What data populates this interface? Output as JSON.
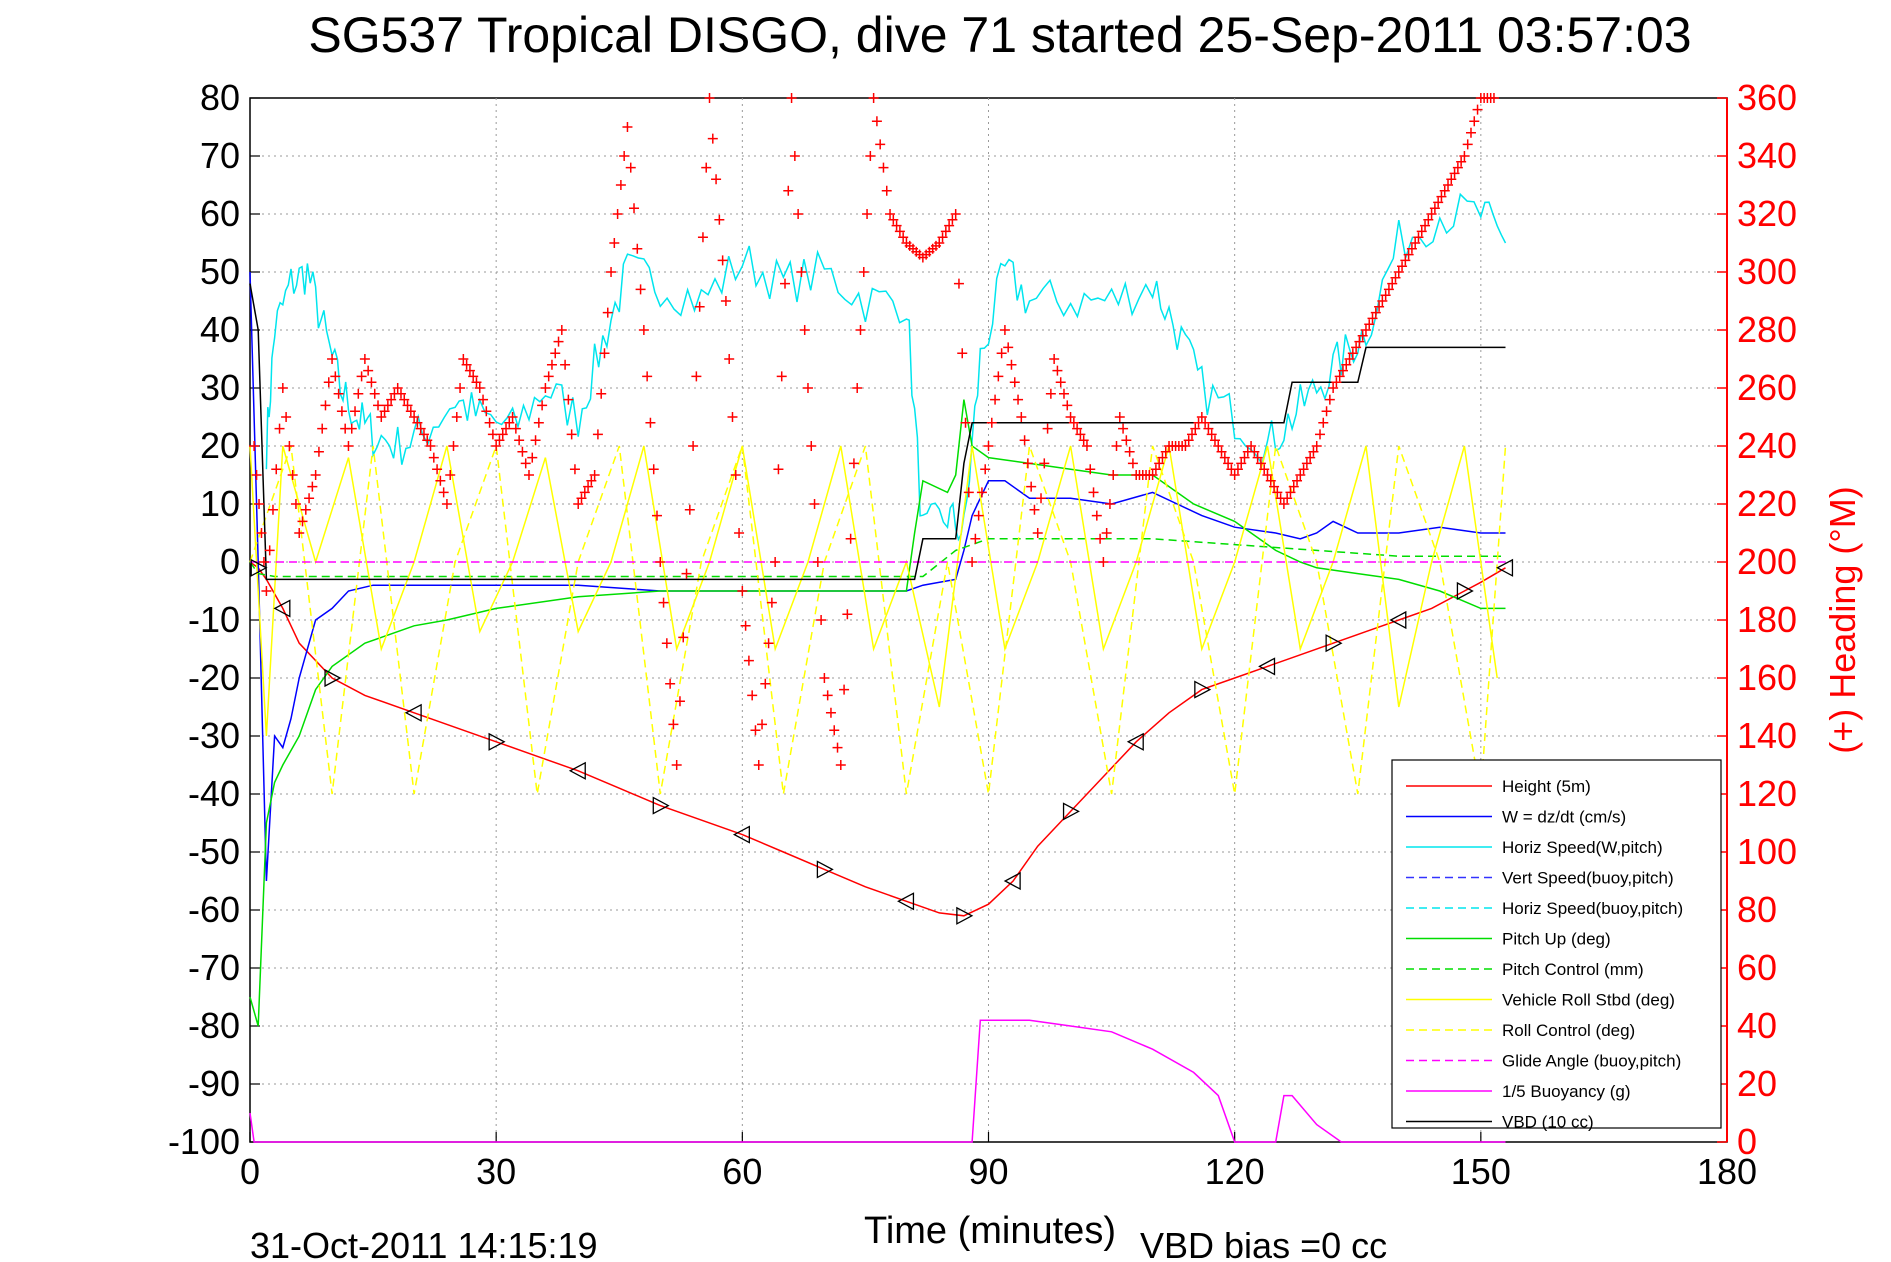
{
  "chart_data": {
    "type": "line",
    "title": "SG537 Tropical DISGO, dive 71 started 25-Sep-2011 03:57:03",
    "xlabel": "Time (minutes)",
    "ylabel": "",
    "y2label": "(+) Heading (°M)",
    "footer_left": "31-Oct-2011 14:15:19",
    "footer_right": "VBD bias =0 cc",
    "xlim": [
      0,
      180
    ],
    "ylim": [
      -100,
      80
    ],
    "y2lim": [
      0,
      360
    ],
    "x_ticks": [
      "0",
      "30",
      "60",
      "90",
      "120",
      "150",
      "180"
    ],
    "y_ticks": [
      "-100",
      "-90",
      "-80",
      "-70",
      "-60",
      "-50",
      "-40",
      "-30",
      "-20",
      "-10",
      "0",
      "10",
      "20",
      "30",
      "40",
      "50",
      "60",
      "70",
      "80"
    ],
    "y2_ticks": [
      "0",
      "20",
      "40",
      "60",
      "80",
      "100",
      "120",
      "140",
      "160",
      "180",
      "200",
      "220",
      "240",
      "260",
      "280",
      "300",
      "320",
      "340",
      "360"
    ],
    "grid": true,
    "legend_position": "bottom-right",
    "series": [
      {
        "name": "Height (5m)",
        "color": "#ff0000",
        "dash": "solid",
        "x": [
          0,
          1,
          2,
          4,
          6,
          10,
          14,
          20,
          25,
          30,
          35,
          40,
          45,
          50,
          55,
          60,
          65,
          70,
          75,
          80,
          84,
          87,
          90,
          93,
          96,
          100,
          104,
          108,
          112,
          116,
          120,
          124,
          128,
          132,
          136,
          140,
          144,
          148,
          150,
          153
        ],
        "values": [
          0,
          -1,
          -3,
          -8,
          -14,
          -20,
          -23,
          -26,
          -28.5,
          -31,
          -33.5,
          -36,
          -39,
          -42,
          -44.5,
          -47,
          -50,
          -53,
          -56,
          -58.5,
          -60.5,
          -61,
          -59,
          -55,
          -49,
          -43,
          -37,
          -31,
          -26,
          -22,
          -20,
          -18,
          -16,
          -14,
          -12,
          -10,
          -8,
          -5,
          -3.5,
          -1
        ]
      },
      {
        "name": "W = dz/dt (cm/s)",
        "color": "#0000ff",
        "dash": "solid",
        "x": [
          0,
          1,
          2,
          3,
          4,
          5,
          6,
          8,
          10,
          12,
          15,
          20,
          30,
          40,
          50,
          60,
          70,
          80,
          82,
          86,
          87,
          88,
          90,
          92,
          95,
          100,
          105,
          110,
          113,
          116,
          120,
          125,
          128,
          130,
          132,
          135,
          140,
          145,
          150,
          153
        ],
        "values": [
          50,
          0,
          -55,
          -30,
          -32,
          -27,
          -20,
          -10,
          -8,
          -5,
          -4,
          -4,
          -4,
          -4,
          -5,
          -5,
          -5,
          -5,
          -4,
          -3,
          2,
          8,
          14,
          14,
          11,
          11,
          10,
          12,
          10,
          8,
          6,
          5,
          4,
          5,
          7,
          5,
          5,
          6,
          5,
          5
        ]
      },
      {
        "name": "Horiz Speed(W,pitch)",
        "color": "#00e5ee",
        "dash": "solid",
        "noise": 4,
        "x": [
          2,
          3,
          5,
          7,
          9,
          11,
          13,
          15,
          18,
          21,
          25,
          28,
          32,
          36,
          40,
          43,
          46,
          50,
          55,
          60,
          65,
          70,
          75,
          80,
          82,
          85,
          87,
          89,
          92,
          95,
          100,
          105,
          110,
          113,
          116,
          120,
          124,
          127,
          130,
          133,
          136,
          140,
          145,
          150,
          153
        ],
        "values": [
          20,
          40,
          48,
          50,
          40,
          30,
          25,
          22,
          20,
          22,
          28,
          25,
          23,
          30,
          25,
          38,
          50,
          48,
          45,
          52,
          48,
          50,
          45,
          45,
          5,
          8,
          5,
          35,
          50,
          45,
          45,
          45,
          48,
          40,
          30,
          25,
          20,
          25,
          30,
          35,
          40,
          55,
          60,
          60,
          55
        ]
      },
      {
        "name": "Vert Speed(buoy,pitch)",
        "color": "#3333ff",
        "dash": "dashed",
        "x": [],
        "values": []
      },
      {
        "name": "Horiz Speed(buoy,pitch)",
        "color": "#00e5ee",
        "dash": "dashed",
        "x": [],
        "values": []
      },
      {
        "name": "Pitch Up (deg)",
        "color": "#00dd00",
        "dash": "solid",
        "x": [
          0,
          1,
          2,
          3,
          4,
          6,
          8,
          10,
          14,
          20,
          24,
          30,
          40,
          50,
          60,
          70,
          80,
          81,
          82,
          85,
          86,
          87,
          88,
          90,
          95,
          100,
          105,
          110,
          115,
          120,
          125,
          128,
          130,
          135,
          140,
          145,
          150,
          153
        ],
        "values": [
          -75,
          -80,
          -45,
          -38,
          -35,
          -30,
          -22,
          -18,
          -14,
          -11,
          -10,
          -8,
          -6,
          -5,
          -5,
          -5,
          -5,
          5,
          14,
          12,
          15,
          28,
          20,
          18,
          17,
          16,
          15,
          15,
          10,
          7,
          2,
          0,
          -1,
          -2,
          -3,
          -5,
          -8,
          -8
        ]
      },
      {
        "name": "Pitch Control (mm)",
        "color": "#00dd00",
        "dash": "dashed",
        "x": [
          0,
          1,
          3,
          82,
          86,
          90,
          100,
          110,
          120,
          130,
          140,
          153
        ],
        "values": [
          0,
          -2,
          -2.5,
          -2.5,
          2,
          4,
          4,
          4,
          3,
          2,
          1,
          1
        ]
      },
      {
        "name": "Vehicle Roll Stbd (deg)",
        "color": "#ffff00",
        "dash": "solid",
        "x": [
          0,
          2,
          4,
          8,
          12,
          16,
          20,
          24,
          28,
          32,
          36,
          40,
          44,
          48,
          52,
          56,
          60,
          64,
          68,
          72,
          76,
          80,
          84,
          88,
          92,
          96,
          100,
          104,
          108,
          112,
          116,
          120,
          124,
          128,
          132,
          136,
          140,
          144,
          148,
          152
        ],
        "values": [
          20,
          -30,
          20,
          0,
          18,
          -15,
          0,
          20,
          -12,
          0,
          18,
          -12,
          0,
          20,
          -15,
          0,
          20,
          -15,
          0,
          20,
          -15,
          0,
          -25,
          20,
          -15,
          0,
          20,
          -15,
          0,
          20,
          -15,
          0,
          20,
          -15,
          0,
          20,
          -25,
          0,
          20,
          -20
        ]
      },
      {
        "name": "Roll Control (deg)",
        "color": "#ffff00",
        "dash": "dashed",
        "x": [
          0,
          5,
          10,
          15,
          20,
          25,
          30,
          35,
          40,
          45,
          50,
          55,
          60,
          65,
          70,
          75,
          80,
          85,
          90,
          95,
          100,
          105,
          110,
          115,
          120,
          125,
          130,
          135,
          140,
          145,
          150,
          153
        ],
        "values": [
          0,
          20,
          -40,
          20,
          -40,
          0,
          20,
          -40,
          0,
          20,
          -40,
          0,
          20,
          -40,
          0,
          20,
          -40,
          0,
          -40,
          20,
          0,
          -40,
          20,
          0,
          -40,
          20,
          0,
          -40,
          20,
          0,
          -40,
          20
        ]
      },
      {
        "name": "Glide Angle (buoy,pitch)",
        "color": "#ff00ff",
        "dash": "dashed",
        "x": [
          0,
          153
        ],
        "values": [
          0,
          0
        ]
      },
      {
        "name": "1/5 Buoyancy (g)",
        "color": "#ff00ff",
        "dash": "solid",
        "x": [
          0,
          0.5,
          1,
          88,
          89,
          95,
          100,
          105,
          110,
          115,
          118,
          120,
          125,
          126,
          127,
          130,
          133,
          136,
          153
        ],
        "values": [
          -95,
          -100,
          -100,
          -100,
          -79,
          -79,
          -80,
          -81,
          -84,
          -88,
          -92,
          -100,
          -100,
          -92,
          -92,
          -97,
          -100,
          -100,
          -100
        ]
      },
      {
        "name": "VBD (10 cc)",
        "color": "#000000",
        "dash": "solid",
        "x": [
          0,
          1,
          2,
          3,
          10,
          30,
          60,
          81,
          82,
          86,
          87,
          88,
          120,
          126,
          127,
          135,
          136,
          153
        ],
        "values": [
          48,
          40,
          -3,
          -3,
          -3,
          -3,
          -3,
          -3,
          4,
          4,
          17,
          24,
          24,
          24,
          31,
          31,
          37,
          37
        ]
      }
    ],
    "heading_series": {
      "name": "(+) Heading",
      "color": "#ff0000",
      "axis": "right",
      "x": [
        0.5,
        2,
        4,
        6,
        8,
        10,
        12,
        14,
        16,
        18,
        20,
        22,
        24,
        26,
        28,
        30,
        32,
        34,
        36,
        38,
        40,
        42,
        44,
        46,
        48,
        50,
        52,
        54,
        56,
        58,
        60,
        62,
        64,
        66,
        68,
        70,
        72,
        74,
        76,
        78,
        80,
        82,
        84,
        86,
        88,
        90,
        92,
        94,
        96,
        98,
        100,
        102,
        104,
        106,
        108,
        110,
        112,
        114,
        116,
        118,
        120,
        122,
        124,
        126,
        128,
        130,
        132,
        134,
        136,
        138,
        140,
        142,
        144,
        146,
        148,
        150,
        152
      ],
      "values": [
        240,
        190,
        260,
        210,
        230,
        270,
        240,
        270,
        250,
        260,
        250,
        240,
        220,
        270,
        260,
        240,
        250,
        230,
        260,
        280,
        220,
        230,
        300,
        350,
        280,
        200,
        130,
        240,
        360,
        290,
        190,
        130,
        200,
        360,
        260,
        160,
        130,
        260,
        360,
        320,
        310,
        305,
        310,
        320,
        200,
        240,
        280,
        250,
        210,
        270,
        250,
        240,
        200,
        250,
        230,
        230,
        240,
        240,
        250,
        240,
        230,
        240,
        230,
        220,
        230,
        240,
        260,
        270,
        280,
        290,
        300,
        310,
        320,
        330,
        340,
        360,
        360
      ]
    }
  }
}
